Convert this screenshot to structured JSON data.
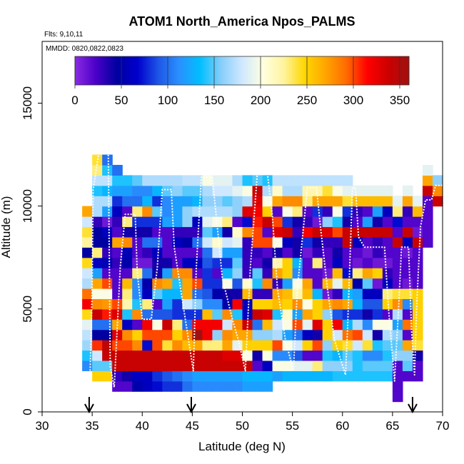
{
  "chart_data": {
    "type": "heatmap",
    "title": "ATOM1 North_America Npos_PALMS",
    "annotations": {
      "flights": "Flts: 9,10,11",
      "dates": "MMDD: 0820,0822,0823"
    },
    "xlabel": "Latitude (deg N)",
    "ylabel": "Altitude (m)",
    "xlim": [
      30,
      70
    ],
    "ylim": [
      0,
      18000
    ],
    "x_ticks": [
      30,
      35,
      40,
      45,
      50,
      55,
      60,
      65,
      70
    ],
    "y_ticks": [
      0,
      5000,
      10000,
      15000
    ],
    "colorbar": {
      "range": [
        0,
        360
      ],
      "ticks": [
        0,
        50,
        100,
        150,
        200,
        250,
        300,
        350
      ],
      "colors": [
        "#8a2be2",
        "#4b00c8",
        "#0000a0",
        "#0000cd",
        "#1e56e6",
        "#2a90ff",
        "#00bfff",
        "#87cefa",
        "#cfe8ff",
        "#ffffe0",
        "#fff3a0",
        "#ffd700",
        "#ffa500",
        "#ff6a00",
        "#ff0000",
        "#cd0000",
        "#a01010"
      ]
    },
    "cell_width_deg": 1,
    "cell_height_m": 500,
    "columns": [
      {
        "x": 34,
        "y0": 2000,
        "values": [
          110,
          140,
          165,
          175,
          190,
          245,
          320,
          290,
          170,
          180,
          245,
          45,
          225,
          240,
          180,
          270
        ]
      },
      {
        "x": 35,
        "y0": 1500,
        "values": [
          250,
          150,
          180,
          305,
          45,
          100,
          340,
          280,
          200,
          270,
          120,
          60,
          230,
          45,
          45,
          30,
          170,
          170,
          140,
          175,
          230,
          240
        ]
      },
      {
        "x": 36,
        "y0": 1500,
        "values": [
          250,
          150,
          340,
          345,
          45,
          100,
          310,
          275,
          200,
          300,
          20,
          55,
          30,
          45,
          60,
          10,
          120,
          170,
          130,
          175,
          140,
          100
        ]
      },
      {
        "x": 37,
        "y0": 1000,
        "values": [
          20,
          30,
          340,
          340,
          300,
          330,
          270,
          330,
          300,
          20,
          20,
          20,
          30,
          20,
          270,
          20,
          30,
          60,
          80,
          120,
          140,
          100
        ]
      },
      {
        "x": 38,
        "y0": 1000,
        "values": [
          20,
          40,
          340,
          340,
          300,
          280,
          60,
          140,
          220,
          230,
          260,
          20,
          50,
          55,
          280,
          40,
          230,
          20,
          100,
          120,
          140
        ]
      },
      {
        "x": 39,
        "y0": 1000,
        "values": [
          50,
          60,
          340,
          340,
          280,
          250,
          20,
          280,
          140,
          110,
          110,
          230,
          10,
          20,
          20,
          40,
          80,
          230,
          100,
          110,
          150
        ]
      },
      {
        "x": 40,
        "y0": 1000,
        "values": [
          60,
          60,
          340,
          340,
          70,
          300,
          320,
          100,
          230,
          60,
          50,
          100,
          10,
          30,
          100,
          40,
          80,
          280,
          130,
          110,
          170
        ]
      },
      {
        "x": 41,
        "y0": 1000,
        "values": [
          70,
          80,
          340,
          340,
          300,
          300,
          200,
          90,
          20,
          150,
          280,
          40,
          40,
          60,
          100,
          20,
          80,
          150,
          80,
          130,
          170
        ]
      },
      {
        "x": 42,
        "y0": 1000,
        "values": [
          80,
          90,
          340,
          340,
          240,
          300,
          340,
          90,
          120,
          130,
          270,
          120,
          40,
          20,
          20,
          20,
          120,
          110,
          110,
          150,
          170
        ]
      },
      {
        "x": 43,
        "y0": 1000,
        "values": [
          80,
          100,
          340,
          340,
          280,
          250,
          230,
          80,
          80,
          130,
          140,
          280,
          20,
          20,
          60,
          30,
          120,
          120,
          120,
          160,
          170
        ]
      },
      {
        "x": 44,
        "y0": 1000,
        "values": [
          100,
          110,
          340,
          340,
          260,
          280,
          100,
          80,
          180,
          270,
          270,
          280,
          60,
          20,
          50,
          30,
          160,
          160,
          120,
          150,
          175
        ]
      },
      {
        "x": 45,
        "y0": 1000,
        "values": [
          110,
          120,
          340,
          340,
          270,
          360,
          320,
          80,
          160,
          100,
          300,
          20,
          60,
          20,
          100,
          30,
          60,
          170,
          130,
          150,
          175
        ]
      },
      {
        "x": 46,
        "y0": 1000,
        "values": [
          110,
          120,
          340,
          340,
          230,
          320,
          320,
          260,
          110,
          90,
          80,
          80,
          90,
          100,
          180,
          150,
          190,
          170,
          160,
          170,
          200
        ]
      },
      {
        "x": 47,
        "y0": 1000,
        "values": [
          110,
          120,
          340,
          340,
          230,
          160,
          320,
          150,
          110,
          50,
          80,
          20,
          80,
          180,
          210,
          120,
          200,
          170,
          160,
          180,
          190
        ]
      },
      {
        "x": 48,
        "y0": 1000,
        "values": [
          110,
          120,
          340,
          330,
          270,
          280,
          180,
          280,
          50,
          40,
          200,
          130,
          80,
          120,
          180,
          40,
          230,
          170,
          150,
          180,
          190
        ]
      },
      {
        "x": 49,
        "y0": 1000,
        "values": [
          110,
          120,
          340,
          330,
          190,
          270,
          280,
          140,
          320,
          40,
          90,
          160,
          150,
          120,
          190,
          210,
          20,
          160,
          160,
          190,
          170
        ]
      },
      {
        "x": 50,
        "y0": 1000,
        "values": [
          120,
          130,
          340,
          200,
          250,
          270,
          340,
          60,
          60,
          260,
          210,
          30,
          30,
          30,
          30,
          280,
          70,
          330,
          170,
          200,
          140
        ]
      },
      {
        "x": 51,
        "y0": 1000,
        "values": [
          120,
          130,
          20,
          40,
          250,
          160,
          100,
          340,
          250,
          30,
          140,
          150,
          20,
          30,
          300,
          300,
          310,
          320,
          330,
          340,
          150
        ]
      },
      {
        "x": 52,
        "y0": 1000,
        "values": [
          120,
          130,
          60,
          200,
          250,
          160,
          260,
          330,
          250,
          30,
          280,
          30,
          40,
          20,
          300,
          20,
          340,
          250,
          200,
          170,
          140
        ]
      },
      {
        "x": 53,
        "y0": 1500,
        "values": [
          120,
          200,
          110,
          300,
          170,
          180,
          140,
          260,
          270,
          30,
          270,
          220,
          40,
          200,
          330,
          300,
          20,
          270,
          210,
          175
        ]
      },
      {
        "x": 54,
        "y0": 1500,
        "values": [
          130,
          200,
          110,
          200,
          120,
          200,
          210,
          250,
          260,
          120,
          250,
          250,
          20,
          60,
          340,
          80,
          200,
          280,
          170,
          175
        ]
      },
      {
        "x": 55,
        "y0": 1500,
        "values": [
          130,
          190,
          90,
          180,
          100,
          300,
          120,
          280,
          220,
          200,
          110,
          130,
          40,
          40,
          30,
          40,
          230,
          280,
          170,
          175
        ]
      },
      {
        "x": 56,
        "y0": 1500,
        "values": [
          130,
          190,
          20,
          250,
          60,
          190,
          270,
          200,
          260,
          270,
          20,
          20,
          10,
          80,
          320,
          30,
          20,
          230,
          220,
          175
        ]
      },
      {
        "x": 57,
        "y0": 1500,
        "values": [
          130,
          230,
          20,
          300,
          40,
          330,
          250,
          250,
          130,
          20,
          20,
          230,
          30,
          40,
          340,
          10,
          80,
          270,
          220,
          175
        ]
      },
      {
        "x": 58,
        "y0": 1500,
        "values": [
          130,
          160,
          140,
          160,
          250,
          250,
          160,
          270,
          10,
          260,
          10,
          20,
          20,
          30,
          330,
          160,
          30,
          270,
          240,
          175
        ]
      },
      {
        "x": 59,
        "y0": 1500,
        "values": [
          140,
          160,
          130,
          250,
          180,
          320,
          90,
          280,
          30,
          190,
          260,
          60,
          40,
          30,
          300,
          140,
          200,
          270,
          200,
          175
        ]
      },
      {
        "x": 60,
        "y0": 1500,
        "values": [
          140,
          160,
          150,
          240,
          290,
          130,
          80,
          270,
          130,
          260,
          70,
          20,
          20,
          340,
          340,
          40,
          80,
          240,
          190,
          175
        ]
      },
      {
        "x": 61,
        "y0": 1500,
        "values": [
          140,
          140,
          140,
          180,
          300,
          170,
          80,
          130,
          120,
          50,
          230,
          10,
          20,
          60,
          340,
          20,
          30,
          260,
          190
        ]
      },
      {
        "x": 62,
        "y0": 1500,
        "values": [
          140,
          150,
          110,
          240,
          180,
          110,
          40,
          90,
          60,
          150,
          270,
          20,
          10,
          20,
          340,
          120,
          20,
          260,
          190
        ]
      },
      {
        "x": 63,
        "y0": 1500,
        "values": [
          140,
          150,
          110,
          140,
          40,
          200,
          80,
          90,
          60,
          10,
          250,
          10,
          30,
          30,
          340,
          40,
          120,
          260,
          190
        ]
      },
      {
        "x": 64,
        "y0": 1500,
        "values": [
          140,
          150,
          140,
          150,
          170,
          200,
          20,
          250,
          230,
          60,
          30,
          10,
          20,
          20,
          340,
          20,
          60,
          260,
          190
        ]
      },
      {
        "x": 65,
        "y0": 500,
        "values": [
          20,
          20,
          20,
          20,
          160,
          150,
          160,
          120,
          170,
          280,
          240,
          20,
          20,
          20,
          20,
          340,
          20,
          70,
          230,
          190
        ]
      },
      {
        "x": 66,
        "y0": 1500,
        "values": [
          20,
          150,
          160,
          270,
          20,
          290,
          20,
          110,
          240,
          10,
          20,
          20,
          10,
          60,
          340,
          20,
          30,
          270,
          190
        ]
      },
      {
        "x": 67,
        "y0": 1500,
        "values": [
          20,
          20,
          40,
          240,
          250,
          250,
          250,
          250,
          250,
          20,
          20,
          20,
          20,
          340,
          10,
          20,
          260,
          190
        ]
      },
      {
        "x": 68,
        "y0": 8000,
        "values": [
          20,
          20,
          20,
          20,
          20,
          340,
          270,
          190
        ]
      },
      {
        "x": 69,
        "y0": 10000,
        "values": [
          340,
          280,
          160
        ]
      }
    ],
    "flight_track": [
      [
        34.8,
        2000
      ],
      [
        35.0,
        6000
      ],
      [
        35.1,
        10800
      ],
      [
        35.7,
        12700
      ],
      [
        36.6,
        12700
      ],
      [
        36.7,
        8000
      ],
      [
        36.8,
        2200
      ],
      [
        37.2,
        1200
      ],
      [
        37.8,
        7000
      ],
      [
        38.3,
        9600
      ],
      [
        39.3,
        9600
      ],
      [
        39.5,
        6800
      ],
      [
        40.0,
        4500
      ],
      [
        40.9,
        4500
      ],
      [
        41.5,
        7000
      ],
      [
        42.0,
        10800
      ],
      [
        42.9,
        10800
      ],
      [
        43.2,
        8000
      ],
      [
        44.3,
        4500
      ],
      [
        45.1,
        2000
      ],
      [
        45.4,
        7000
      ],
      [
        45.9,
        11400
      ],
      [
        47.0,
        11400
      ],
      [
        47.5,
        9000
      ],
      [
        48.0,
        6500
      ],
      [
        49.0,
        4500
      ],
      [
        49.6,
        3500
      ],
      [
        50.3,
        2000
      ],
      [
        50.8,
        7000
      ],
      [
        51.5,
        11600
      ],
      [
        52.5,
        11600
      ],
      [
        53.0,
        9500
      ],
      [
        53.5,
        6000
      ],
      [
        54.3,
        3500
      ],
      [
        55.1,
        2000
      ],
      [
        55.5,
        6000
      ],
      [
        56.5,
        10900
      ],
      [
        57.4,
        10900
      ],
      [
        57.8,
        9000
      ],
      [
        58.5,
        6000
      ],
      [
        59.2,
        3500
      ],
      [
        60.3,
        1800
      ],
      [
        60.5,
        4000
      ],
      [
        61.0,
        10900
      ],
      [
        61.3,
        10900
      ],
      [
        61.6,
        8500
      ],
      [
        62.2,
        8000
      ],
      [
        64.2,
        8000
      ],
      [
        64.6,
        5000
      ],
      [
        65.2,
        1500
      ],
      [
        65.6,
        5000
      ],
      [
        65.9,
        8000
      ],
      [
        66.6,
        8000
      ],
      [
        66.9,
        4000
      ],
      [
        67.2,
        1800
      ],
      [
        67.4,
        5000
      ],
      [
        67.8,
        9000
      ],
      [
        68.3,
        10300
      ],
      [
        68.9,
        10300
      ],
      [
        69.3,
        11000
      ],
      [
        70,
        11000
      ]
    ],
    "markers": [
      34.7,
      44.9,
      67.0
    ]
  }
}
